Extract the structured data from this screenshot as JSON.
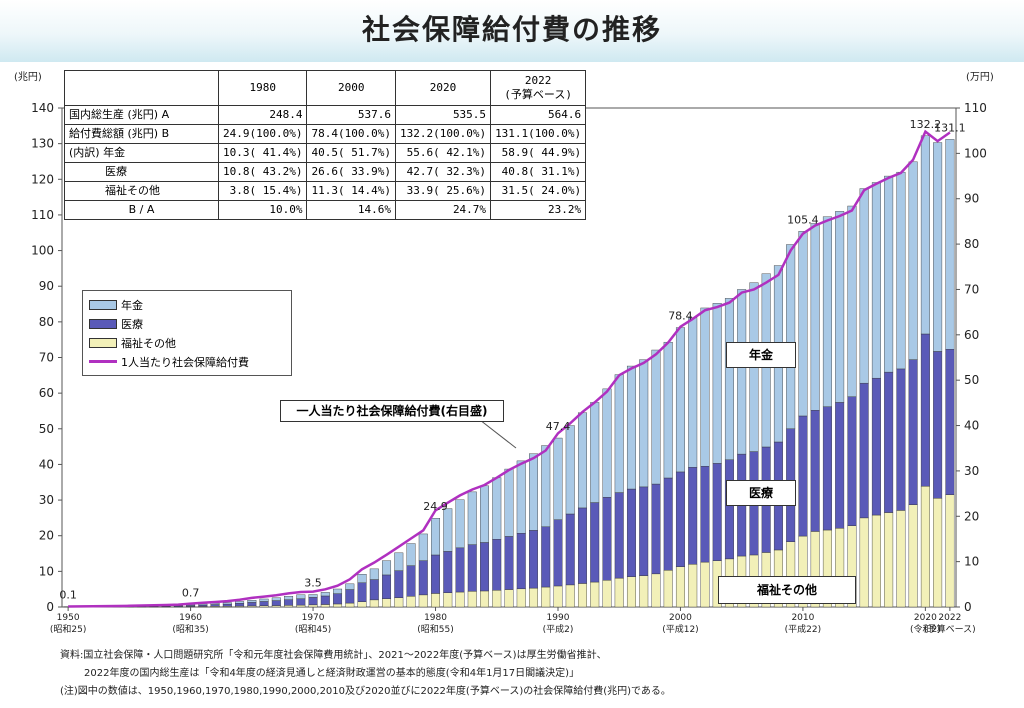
{
  "title": "社会保障給付費の推移",
  "left_unit": "(兆円)",
  "right_unit": "(万円)",
  "table": {
    "headers": [
      "1980",
      "2000",
      "2020",
      "2022\n(予算ベース)"
    ],
    "rows": [
      {
        "label": "国内総生産 (兆円) A",
        "values": [
          "248.4",
          "537.6",
          "535.5",
          "564.6"
        ]
      },
      {
        "label": "給付費総額 (兆円) B",
        "values": [
          "24.9(100.0%)",
          "78.4(100.0%)",
          "132.2(100.0%)",
          "131.1(100.0%)"
        ]
      },
      {
        "label": "(内訳) 年金",
        "values": [
          "10.3( 41.4%)",
          "40.5( 51.7%)",
          "55.6( 42.1%)",
          "58.9( 44.9%)"
        ]
      },
      {
        "label": "医療",
        "values": [
          "10.8( 43.2%)",
          "26.6( 33.9%)",
          "42.7( 32.3%)",
          "40.8( 31.1%)"
        ]
      },
      {
        "label": "福祉その他",
        "values": [
          "3.8( 15.4%)",
          "11.3( 14.4%)",
          "33.9( 25.6%)",
          "31.5( 24.0%)"
        ]
      },
      {
        "label": "B / A",
        "values": [
          "10.0%",
          "14.6%",
          "24.7%",
          "23.2%"
        ]
      }
    ]
  },
  "legend": {
    "pension": "年金",
    "medical": "医療",
    "welfare": "福祉その他",
    "per_capita": "1人当たり社会保障給付費"
  },
  "colors": {
    "pension": "#a9c9e6",
    "medical": "#5a5ab8",
    "welfare": "#f2f0b8",
    "line": "#b030c0"
  },
  "inline_labels": {
    "pension": "年金",
    "medical": "医療",
    "welfare": "福祉その他",
    "callout": "一人当たり社会保障給付費(右目盛)"
  },
  "footnotes": {
    "line1": "資料:国立社会保障・人口問題研究所「令和元年度社会保障費用統計」、2021〜2022年度(予算ベース)は厚生労働省推計、",
    "line2": "2022年度の国内総生産は「令和4年度の経済見通しと経済財政運営の基本的態度(令和4年1月17日閣議決定)」",
    "line3": "(注)図中の数値は、1950,1960,1970,1980,1990,2000,2010及び2020並びに2022年度(予算ベース)の社会保障給付費(兆円)である。"
  },
  "chart_data": {
    "type": "bar",
    "stacked": true,
    "title": "社会保障給付費の推移",
    "xlabel": "",
    "ylabel": "(兆円)",
    "y2label": "(万円)",
    "ylim": [
      0,
      140
    ],
    "y2lim": [
      0,
      110
    ],
    "yticks": [
      0,
      10,
      20,
      30,
      40,
      50,
      60,
      70,
      80,
      90,
      100,
      110,
      120,
      130,
      140
    ],
    "y2ticks": [
      0,
      10,
      20,
      30,
      40,
      50,
      60,
      70,
      80,
      90,
      100,
      110
    ],
    "x_start": 1950,
    "x_end": 2022,
    "x_tick_labels": [
      {
        "year": 1950,
        "label": "1950",
        "era": "(昭和25)"
      },
      {
        "year": 1960,
        "label": "1960",
        "era": "(昭和35)"
      },
      {
        "year": 1970,
        "label": "1970",
        "era": "(昭和45)"
      },
      {
        "year": 1980,
        "label": "1980",
        "era": "(昭和55)"
      },
      {
        "year": 1990,
        "label": "1990",
        "era": "(平成2)"
      },
      {
        "year": 2000,
        "label": "2000",
        "era": "(平成12)"
      },
      {
        "year": 2010,
        "label": "2010",
        "era": "(平成22)"
      },
      {
        "year": 2020,
        "label": "2020",
        "era": "(令和2)"
      },
      {
        "year": 2022,
        "label": "2022",
        "era": "(予算ベース)"
      }
    ],
    "total_labels": [
      {
        "year": 1950,
        "label": "0.1"
      },
      {
        "year": 1960,
        "label": "0.7"
      },
      {
        "year": 1970,
        "label": "3.5"
      },
      {
        "year": 1980,
        "label": "24.9"
      },
      {
        "year": 1990,
        "label": "47.4"
      },
      {
        "year": 2000,
        "label": "78.4"
      },
      {
        "year": 2010,
        "label": "105.4"
      },
      {
        "year": 2020,
        "label": "132.2"
      },
      {
        "year": 2022,
        "label": "131.1"
      }
    ],
    "years": [
      1950,
      1951,
      1952,
      1953,
      1954,
      1955,
      1956,
      1957,
      1958,
      1959,
      1960,
      1961,
      1962,
      1963,
      1964,
      1965,
      1966,
      1967,
      1968,
      1969,
      1970,
      1971,
      1972,
      1973,
      1974,
      1975,
      1976,
      1977,
      1978,
      1979,
      1980,
      1981,
      1982,
      1983,
      1984,
      1985,
      1986,
      1987,
      1988,
      1989,
      1990,
      1991,
      1992,
      1993,
      1994,
      1995,
      1996,
      1997,
      1998,
      1999,
      2000,
      2001,
      2002,
      2003,
      2004,
      2005,
      2006,
      2007,
      2008,
      2009,
      2010,
      2011,
      2012,
      2013,
      2014,
      2015,
      2016,
      2017,
      2018,
      2019,
      2020,
      2021,
      2022
    ],
    "series": [
      {
        "name": "福祉その他",
        "values": [
          0.05,
          0.06,
          0.07,
          0.07,
          0.08,
          0.09,
          0.1,
          0.1,
          0.12,
          0.13,
          0.14,
          0.16,
          0.19,
          0.22,
          0.26,
          0.3,
          0.35,
          0.4,
          0.46,
          0.53,
          0.6,
          0.7,
          0.85,
          1.1,
          1.5,
          2.0,
          2.3,
          2.6,
          3.0,
          3.4,
          3.8,
          4.0,
          4.2,
          4.4,
          4.5,
          4.7,
          4.9,
          5.1,
          5.3,
          5.6,
          5.9,
          6.2,
          6.6,
          7.0,
          7.5,
          8.1,
          8.5,
          8.8,
          9.3,
          10.3,
          11.3,
          12.0,
          12.6,
          13.0,
          13.5,
          14.3,
          14.6,
          15.3,
          16.0,
          18.3,
          19.9,
          21.2,
          21.6,
          22.1,
          22.8,
          25.0,
          25.8,
          26.5,
          27.1,
          28.7,
          33.9,
          30.5,
          31.5
        ]
      },
      {
        "name": "医療",
        "values": [
          0.03,
          0.04,
          0.05,
          0.06,
          0.07,
          0.1,
          0.12,
          0.15,
          0.18,
          0.21,
          0.3,
          0.4,
          0.5,
          0.6,
          0.8,
          1.0,
          1.2,
          1.4,
          1.6,
          1.8,
          2.1,
          2.4,
          2.9,
          3.8,
          5.3,
          5.7,
          6.7,
          7.6,
          8.6,
          9.6,
          10.8,
          11.6,
          12.4,
          13.1,
          13.6,
          14.3,
          14.9,
          15.6,
          16.2,
          16.9,
          18.6,
          19.9,
          21.2,
          22.3,
          23.3,
          24.0,
          24.6,
          24.9,
          25.2,
          25.9,
          26.6,
          27.2,
          26.9,
          27.3,
          27.8,
          28.6,
          29.0,
          29.6,
          30.3,
          31.7,
          33.7,
          34.0,
          34.6,
          35.3,
          36.2,
          37.8,
          38.4,
          39.4,
          39.7,
          40.7,
          42.7,
          41.2,
          40.8
        ]
      },
      {
        "name": "年金",
        "values": [
          0.02,
          0.02,
          0.03,
          0.04,
          0.05,
          0.06,
          0.07,
          0.08,
          0.1,
          0.12,
          0.26,
          0.3,
          0.35,
          0.42,
          0.5,
          0.6,
          0.7,
          0.8,
          0.95,
          1.1,
          0.8,
          1.0,
          1.3,
          1.6,
          2.4,
          3.0,
          4.0,
          5.0,
          6.2,
          7.5,
          10.3,
          12.0,
          13.5,
          14.8,
          15.9,
          17.3,
          18.9,
          20.3,
          21.5,
          22.8,
          22.9,
          24.8,
          26.7,
          28.1,
          30.4,
          33.1,
          34.5,
          35.7,
          37.6,
          38.1,
          40.5,
          42.0,
          44.4,
          44.9,
          45.3,
          46.2,
          47.4,
          48.6,
          49.5,
          51.7,
          51.8,
          52.4,
          53.3,
          53.6,
          53.5,
          54.6,
          54.9,
          55.0,
          55.2,
          55.5,
          55.6,
          58.6,
          58.9
        ]
      }
    ],
    "per_capita_line": {
      "name": "1人当たり社会保障給付費",
      "axis": "right",
      "values": [
        0.1,
        0.14,
        0.17,
        0.2,
        0.23,
        0.27,
        0.32,
        0.37,
        0.45,
        0.52,
        0.75,
        0.93,
        1.1,
        1.3,
        1.6,
        2.0,
        2.3,
        2.6,
        3.0,
        3.3,
        3.4,
        3.9,
        4.7,
        6.1,
        8.3,
        9.8,
        11.5,
        13.3,
        15.1,
        16.9,
        21.3,
        23.0,
        24.6,
        25.9,
        26.9,
        28.5,
        30.2,
        31.6,
        32.8,
        34.5,
        38.3,
        40.5,
        43.0,
        45.1,
        47.5,
        51.1,
        52.6,
        53.8,
        55.7,
        58.3,
        61.8,
        63.5,
        65.4,
        66.1,
        67.1,
        69.3,
        70.0,
        71.5,
        73.2,
        78.6,
        82.3,
        84.1,
        85.2,
        86.2,
        87.4,
        91.9,
        93.3,
        94.6,
        95.7,
        98.6,
        104.8,
        102.7,
        104.6
      ]
    }
  }
}
